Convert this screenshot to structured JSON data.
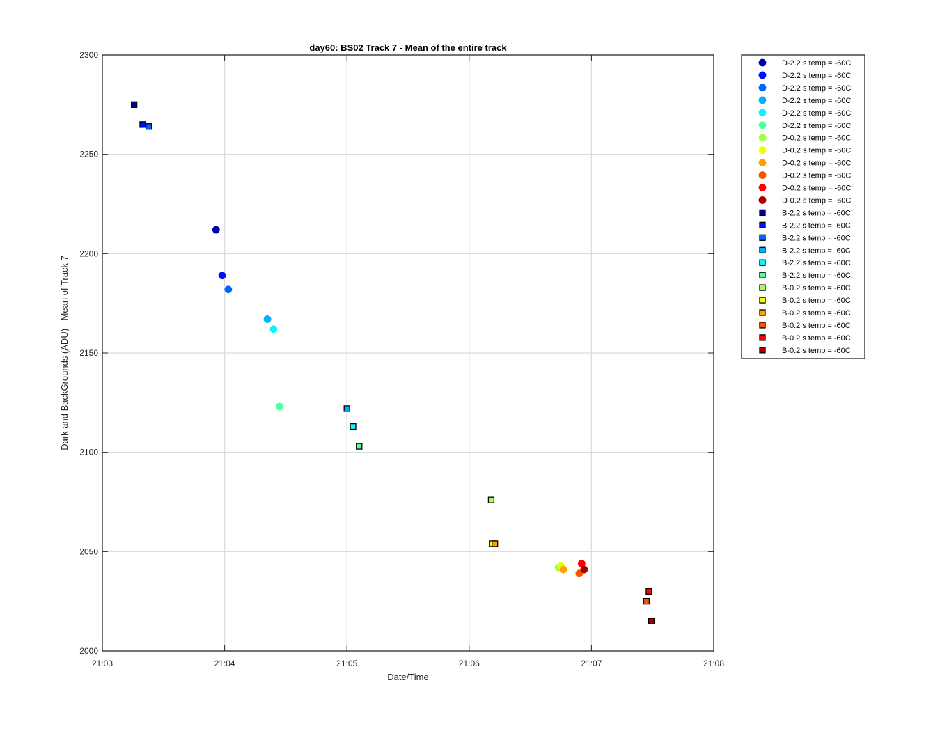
{
  "chart_data": {
    "type": "scatter",
    "title": "day60: BS02  Track 7 - Mean of the entire track",
    "xlabel": "Date/Time",
    "ylabel": "Dark and BackGrounds (ADU) - Mean of Track 7",
    "x_ticks": [
      "21:03",
      "21:04",
      "21:05",
      "21:06",
      "21:07",
      "21:08"
    ],
    "x_tick_minutes": [
      0,
      1,
      2,
      3,
      4,
      5
    ],
    "xlim_minutes_after_21_03": [
      0,
      5
    ],
    "ylim": [
      2000,
      2300
    ],
    "y_ticks": [
      2000,
      2050,
      2100,
      2150,
      2200,
      2250,
      2300
    ],
    "grid": true,
    "legend_position": "outside-right",
    "series": [
      {
        "name": "D-2.2 s temp = -60C",
        "marker": "circle",
        "color": "#0000a8",
        "points": [
          [
            0.93,
            2212
          ]
        ]
      },
      {
        "name": "D-2.2 s temp = -60C",
        "marker": "circle",
        "color": "#0010ff",
        "points": [
          [
            0.98,
            2189
          ]
        ]
      },
      {
        "name": "D-2.2 s temp = -60C",
        "marker": "circle",
        "color": "#0064ff",
        "points": [
          [
            1.03,
            2182
          ]
        ]
      },
      {
        "name": "D-2.2 s temp = -60C",
        "marker": "circle",
        "color": "#00b0ff",
        "points": [
          [
            1.35,
            2167
          ]
        ]
      },
      {
        "name": "D-2.2 s temp = -60C",
        "marker": "circle",
        "color": "#10f0ff",
        "points": [
          [
            1.4,
            2162
          ]
        ]
      },
      {
        "name": "D-2.2 s temp = -60C",
        "marker": "circle",
        "color": "#50ff9f",
        "points": [
          [
            1.45,
            2123
          ]
        ]
      },
      {
        "name": "D-0.2 s temp = -60C",
        "marker": "circle",
        "color": "#a0ff50",
        "points": [
          [
            3.73,
            2042
          ]
        ]
      },
      {
        "name": "D-0.2 s temp = -60C",
        "marker": "circle",
        "color": "#f0ff00",
        "points": [
          [
            3.75,
            2043
          ]
        ]
      },
      {
        "name": "D-0.2 s temp = -60C",
        "marker": "circle",
        "color": "#ffa000",
        "points": [
          [
            3.77,
            2041
          ]
        ]
      },
      {
        "name": "D-0.2 s temp = -60C",
        "marker": "circle",
        "color": "#ff5000",
        "points": [
          [
            3.9,
            2039
          ]
        ]
      },
      {
        "name": "D-0.2 s temp = -60C",
        "marker": "circle",
        "color": "#ff0000",
        "points": [
          [
            3.92,
            2044
          ]
        ]
      },
      {
        "name": "D-0.2 s temp = -60C",
        "marker": "circle",
        "color": "#a80000",
        "points": [
          [
            3.94,
            2041
          ]
        ]
      },
      {
        "name": "B-2.2 s temp = -60C",
        "marker": "square",
        "color": "#00008f",
        "points": [
          [
            0.26,
            2275
          ]
        ]
      },
      {
        "name": "B-2.2 s temp = -60C",
        "marker": "square",
        "color": "#0010ff",
        "points": [
          [
            0.33,
            2265
          ]
        ]
      },
      {
        "name": "B-2.2 s temp = -60C",
        "marker": "square",
        "color": "#0064ff",
        "points": [
          [
            0.38,
            2264
          ]
        ]
      },
      {
        "name": "B-2.2 s temp = -60C",
        "marker": "square",
        "color": "#00b0ff",
        "points": [
          [
            2.0,
            2122
          ]
        ]
      },
      {
        "name": "B-2.2 s temp = -60C",
        "marker": "square",
        "color": "#10f0ff",
        "points": [
          [
            2.05,
            2113
          ]
        ]
      },
      {
        "name": "B-2.2 s temp = -60C",
        "marker": "square",
        "color": "#50ff9f",
        "points": [
          [
            2.1,
            2103
          ]
        ]
      },
      {
        "name": "B-0.2 s temp = -60C",
        "marker": "square",
        "color": "#a0ff50",
        "points": [
          [
            3.18,
            2076
          ]
        ]
      },
      {
        "name": "B-0.2 s temp = -60C",
        "marker": "square",
        "color": "#f0ff00",
        "points": [
          [
            3.19,
            2054
          ]
        ]
      },
      {
        "name": "B-0.2 s temp = -60C",
        "marker": "square",
        "color": "#ffa000",
        "points": [
          [
            3.21,
            2054
          ]
        ]
      },
      {
        "name": "B-0.2 s temp = -60C",
        "marker": "square",
        "color": "#ff5000",
        "points": [
          [
            4.45,
            2025
          ]
        ]
      },
      {
        "name": "B-0.2 s temp = -60C",
        "marker": "square",
        "color": "#ff0000",
        "points": [
          [
            4.47,
            2030
          ]
        ]
      },
      {
        "name": "B-0.2 s temp = -60C",
        "marker": "square",
        "color": "#a80000",
        "points": [
          [
            4.49,
            2015
          ]
        ]
      }
    ]
  }
}
